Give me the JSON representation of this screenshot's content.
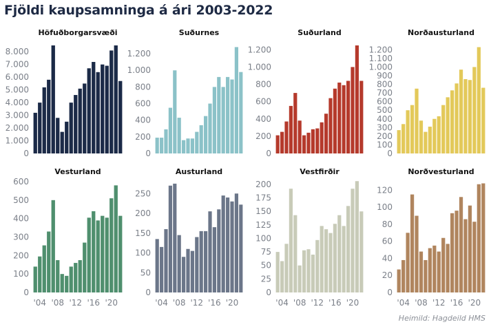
{
  "title": "Fjöldi kaupsamninga á ári 2003-2022",
  "source": "Heimild: Hagdeild HMS",
  "chart_data": [
    {
      "type": "bar",
      "title": "Höfuðborgarsvæði",
      "color": "#1b2a47",
      "categories": [
        "2003",
        "2004",
        "2005",
        "2006",
        "2007",
        "2008",
        "2009",
        "2010",
        "2011",
        "2012",
        "2013",
        "2014",
        "2015",
        "2016",
        "2017",
        "2018",
        "2019",
        "2020",
        "2021",
        "2022"
      ],
      "x_tick_labels": [],
      "yticks": [
        0,
        1000,
        2000,
        3000,
        4000,
        5000,
        6000,
        7000,
        8000
      ],
      "ytick_labels": [
        "0",
        "1.000",
        "2.000",
        "3.000",
        "4.000",
        "5.000",
        "6.000",
        "7.000",
        "8.000"
      ],
      "ylim": [
        0,
        8500
      ],
      "values": [
        3200,
        4000,
        5200,
        5800,
        8500,
        2800,
        1700,
        2500,
        4000,
        4600,
        5100,
        5500,
        6700,
        7200,
        6400,
        7000,
        6900,
        8100,
        8500,
        5700
      ]
    },
    {
      "type": "bar",
      "title": "Suðurnes",
      "color": "#8bc2c8",
      "categories": [
        "2003",
        "2004",
        "2005",
        "2006",
        "2007",
        "2008",
        "2009",
        "2010",
        "2011",
        "2012",
        "2013",
        "2014",
        "2015",
        "2016",
        "2017",
        "2018",
        "2019",
        "2020",
        "2021",
        "2022"
      ],
      "x_tick_labels": [],
      "yticks": [
        0,
        200,
        400,
        600,
        800,
        1000,
        1200
      ],
      "ytick_labels": [
        "0",
        "200",
        "400",
        "600",
        "800",
        "1.000",
        "1.200"
      ],
      "ylim": [
        0,
        1300
      ],
      "values": [
        190,
        190,
        290,
        550,
        1000,
        430,
        160,
        180,
        180,
        260,
        340,
        450,
        600,
        800,
        920,
        800,
        920,
        890,
        1280,
        980
      ]
    },
    {
      "type": "bar",
      "title": "Suðurland",
      "color": "#b53a2c",
      "categories": [
        "2003",
        "2004",
        "2005",
        "2006",
        "2007",
        "2008",
        "2009",
        "2010",
        "2011",
        "2012",
        "2013",
        "2014",
        "2015",
        "2016",
        "2017",
        "2018",
        "2019",
        "2020",
        "2021",
        "2022"
      ],
      "x_tick_labels": [],
      "yticks": [
        0,
        200,
        400,
        600,
        800,
        1000,
        1200
      ],
      "ytick_labels": [
        "0",
        "200",
        "400",
        "600",
        "800",
        "1.000",
        "1.200"
      ],
      "ylim": [
        0,
        1250
      ],
      "values": [
        210,
        250,
        370,
        550,
        700,
        380,
        210,
        240,
        280,
        290,
        360,
        460,
        640,
        750,
        820,
        790,
        840,
        1000,
        1250,
        840
      ]
    },
    {
      "type": "bar",
      "title": "Norðausturland",
      "color": "#e3c95a",
      "categories": [
        "2003",
        "2004",
        "2005",
        "2006",
        "2007",
        "2008",
        "2009",
        "2010",
        "2011",
        "2012",
        "2013",
        "2014",
        "2015",
        "2016",
        "2017",
        "2018",
        "2019",
        "2020",
        "2021",
        "2022"
      ],
      "x_tick_labels": [],
      "yticks": [
        0,
        100,
        200,
        300,
        400,
        500,
        600,
        700,
        800,
        900,
        1000,
        1100,
        1200
      ],
      "ytick_labels": [
        "0",
        "100",
        "200",
        "300",
        "400",
        "500",
        "600",
        "700",
        "800",
        "900",
        "1.000",
        "1.100",
        "1.200"
      ],
      "ylim": [
        0,
        1250
      ],
      "values": [
        270,
        340,
        500,
        560,
        750,
        380,
        250,
        310,
        400,
        430,
        560,
        650,
        730,
        810,
        970,
        860,
        850,
        1000,
        1230,
        760
      ]
    },
    {
      "type": "bar",
      "title": "Vesturland",
      "color": "#4f8f6e",
      "categories": [
        "2003",
        "2004",
        "2005",
        "2006",
        "2007",
        "2008",
        "2009",
        "2010",
        "2011",
        "2012",
        "2013",
        "2014",
        "2015",
        "2016",
        "2017",
        "2018",
        "2019",
        "2020",
        "2021",
        "2022"
      ],
      "x_tick_labels": [
        "'04",
        "'08",
        "'12",
        "'16",
        "'20"
      ],
      "yticks": [
        0,
        100,
        200,
        300,
        400,
        500,
        600
      ],
      "ytick_labels": [
        "0",
        "100",
        "200",
        "300",
        "400",
        "500",
        "600"
      ],
      "ylim": [
        0,
        600
      ],
      "values": [
        140,
        195,
        255,
        330,
        500,
        175,
        100,
        90,
        140,
        160,
        175,
        270,
        405,
        440,
        390,
        415,
        405,
        510,
        580,
        415
      ]
    },
    {
      "type": "bar",
      "title": "Austurland",
      "color": "#6b7689",
      "categories": [
        "2003",
        "2004",
        "2005",
        "2006",
        "2007",
        "2008",
        "2009",
        "2010",
        "2011",
        "2012",
        "2013",
        "2014",
        "2015",
        "2016",
        "2017",
        "2018",
        "2019",
        "2020",
        "2021",
        "2022"
      ],
      "x_tick_labels": [
        "'04",
        "'08",
        "'12",
        "'16",
        "'20"
      ],
      "yticks": [
        0,
        50,
        100,
        150,
        200,
        250
      ],
      "ytick_labels": [
        "0",
        "50",
        "100",
        "150",
        "200",
        "250"
      ],
      "ylim": [
        0,
        280
      ],
      "values": [
        135,
        115,
        160,
        270,
        275,
        145,
        90,
        110,
        105,
        140,
        155,
        155,
        205,
        165,
        210,
        245,
        240,
        230,
        250,
        222
      ]
    },
    {
      "type": "bar",
      "title": "Vestfirðir",
      "color": "#c8cbb8",
      "categories": [
        "2003",
        "2004",
        "2005",
        "2006",
        "2007",
        "2008",
        "2009",
        "2010",
        "2011",
        "2012",
        "2013",
        "2014",
        "2015",
        "2016",
        "2017",
        "2018",
        "2019",
        "2020",
        "2021",
        "2022"
      ],
      "x_tick_labels": [
        "'04",
        "'08",
        "'12",
        "'16",
        "'20"
      ],
      "yticks": [
        0,
        25,
        50,
        75,
        100,
        125,
        150,
        175,
        200
      ],
      "ytick_labels": [
        "0",
        "25",
        "50",
        "75",
        "100",
        "125",
        "150",
        "175",
        "200"
      ],
      "ylim": [
        0,
        205
      ],
      "values": [
        75,
        58,
        90,
        192,
        143,
        50,
        78,
        80,
        70,
        97,
        123,
        117,
        110,
        127,
        143,
        123,
        160,
        192,
        206,
        150
      ]
    },
    {
      "type": "bar",
      "title": "Norðvesturland",
      "color": "#b0855e",
      "categories": [
        "2003",
        "2004",
        "2005",
        "2006",
        "2007",
        "2008",
        "2009",
        "2010",
        "2011",
        "2012",
        "2013",
        "2014",
        "2015",
        "2016",
        "2017",
        "2018",
        "2019",
        "2020",
        "2021",
        "2022"
      ],
      "x_tick_labels": [
        "'04",
        "'08",
        "'12",
        "'16",
        "'20"
      ],
      "yticks": [
        0,
        20,
        40,
        60,
        80,
        100,
        120
      ],
      "ytick_labels": [
        "0",
        "20",
        "40",
        "60",
        "80",
        "100",
        "120"
      ],
      "ylim": [
        0,
        130
      ],
      "values": [
        27,
        38,
        70,
        115,
        90,
        48,
        38,
        52,
        55,
        48,
        64,
        57,
        93,
        96,
        112,
        86,
        102,
        83,
        127,
        128
      ]
    }
  ]
}
